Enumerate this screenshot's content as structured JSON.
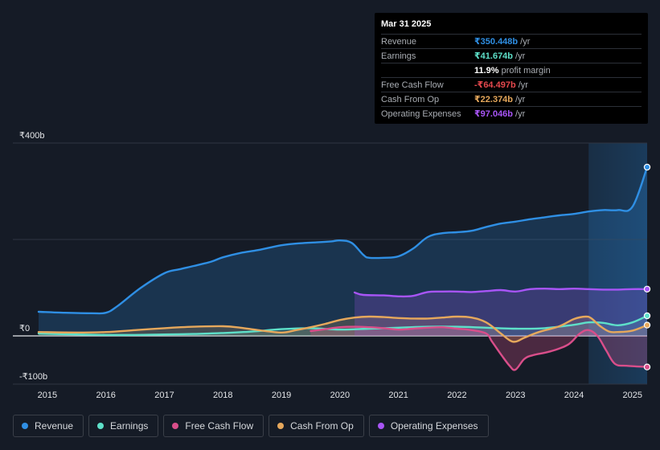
{
  "colors": {
    "revenue": "#2f8fe4",
    "earnings": "#5ee0c9",
    "free_cash_flow": "#d94e8a",
    "cash_from_op": "#e6a85c",
    "operating_expenses": "#a855f7",
    "background": "#151b26"
  },
  "tooltip": {
    "date": "Mar 31 2025",
    "rows": [
      {
        "label": "Revenue",
        "value": "₹350.448b",
        "unit": "/yr",
        "color": "#2f8fe4"
      },
      {
        "label": "Earnings",
        "value": "₹41.674b",
        "unit": "/yr",
        "color": "#5ee0c9"
      },
      {
        "label": "",
        "value": "11.9%",
        "unit": "profit margin",
        "color": "#ffffff"
      },
      {
        "label": "Free Cash Flow",
        "value": "-₹64.497b",
        "unit": "/yr",
        "color": "#e5484d"
      },
      {
        "label": "Cash From Op",
        "value": "₹22.374b",
        "unit": "/yr",
        "color": "#e6a85c"
      },
      {
        "label": "Operating Expenses",
        "value": "₹97.046b",
        "unit": "/yr",
        "color": "#a855f7"
      }
    ]
  },
  "legend": [
    {
      "name": "Revenue",
      "icon": "revenue-dot-icon",
      "color": "#2f8fe4"
    },
    {
      "name": "Earnings",
      "icon": "earnings-dot-icon",
      "color": "#5ee0c9"
    },
    {
      "name": "Free Cash Flow",
      "icon": "free-cash-flow-dot-icon",
      "color": "#d94e8a"
    },
    {
      "name": "Cash From Op",
      "icon": "cash-from-op-dot-icon",
      "color": "#e6a85c"
    },
    {
      "name": "Operating Expenses",
      "icon": "operating-expenses-dot-icon",
      "color": "#a855f7"
    }
  ],
  "chart_data": {
    "type": "area",
    "title": "",
    "xlabel": "",
    "ylabel": "",
    "ylim": [
      -100,
      400
    ],
    "xlim": [
      2014.85,
      2025.25
    ],
    "y_tick_labels": [
      {
        "value": 400,
        "label": "₹400b"
      },
      {
        "value": 0,
        "label": "₹0"
      },
      {
        "value": -100,
        "label": "-₹100b"
      }
    ],
    "x_ticks": [
      2015,
      2016,
      2017,
      2018,
      2019,
      2020,
      2021,
      2022,
      2023,
      2024,
      2025
    ],
    "x_tick_labels": [
      "2015",
      "2016",
      "2017",
      "2018",
      "2019",
      "2020",
      "2021",
      "2022",
      "2023",
      "2024",
      "2025"
    ],
    "grid": true,
    "forecast_shade_start": 2024.25,
    "series": [
      {
        "name": "Revenue",
        "color": "#2f8fe4",
        "x": [
          2014.85,
          2015.3,
          2015.75,
          2016.0,
          2016.2,
          2016.6,
          2017.0,
          2017.25,
          2017.5,
          2017.8,
          2018.0,
          2018.3,
          2018.6,
          2019.0,
          2019.3,
          2019.6,
          2019.85,
          2020.0,
          2020.2,
          2020.4,
          2020.5,
          2020.75,
          2021.0,
          2021.25,
          2021.5,
          2021.75,
          2022.0,
          2022.25,
          2022.5,
          2022.75,
          2023.0,
          2023.25,
          2023.5,
          2023.75,
          2024.0,
          2024.25,
          2024.5,
          2024.75,
          2025.0,
          2025.25
        ],
        "values": [
          50,
          48,
          47,
          48,
          62,
          100,
          130,
          138,
          145,
          154,
          163,
          172,
          178,
          188,
          192,
          194,
          196,
          198,
          193,
          168,
          162,
          162,
          165,
          181,
          205,
          213,
          215,
          218,
          226,
          233,
          237,
          242,
          246,
          250,
          253,
          258,
          261,
          261,
          268,
          350
        ]
      },
      {
        "name": "Earnings",
        "color": "#5ee0c9",
        "x": [
          2014.85,
          2015.5,
          2016.0,
          2016.5,
          2017.0,
          2017.5,
          2018.0,
          2018.5,
          2019.0,
          2019.5,
          2020.0,
          2020.5,
          2021.0,
          2021.5,
          2022.0,
          2022.5,
          2023.0,
          2023.5,
          2024.0,
          2024.25,
          2024.5,
          2024.75,
          2025.0,
          2025.25
        ],
        "values": [
          5,
          3,
          2,
          2,
          3,
          4,
          6,
          9,
          14,
          16,
          13,
          15,
          17,
          19,
          19,
          17,
          15,
          16,
          23,
          28,
          27,
          22,
          28,
          41.674
        ]
      },
      {
        "name": "Free Cash Flow",
        "color": "#d94e8a",
        "x": [
          2019.5,
          2019.75,
          2020.0,
          2020.25,
          2020.5,
          2020.75,
          2021.0,
          2021.25,
          2021.5,
          2021.75,
          2022.0,
          2022.25,
          2022.5,
          2022.6,
          2022.75,
          2022.9,
          2023.0,
          2023.15,
          2023.3,
          2023.6,
          2023.9,
          2024.1,
          2024.25,
          2024.4,
          2024.55,
          2024.7,
          2024.9,
          2025.25
        ],
        "values": [
          10,
          14,
          18,
          19,
          18,
          16,
          13,
          15,
          17,
          18,
          15,
          12,
          5,
          -12,
          -38,
          -62,
          -70,
          -48,
          -40,
          -32,
          -18,
          5,
          12,
          0,
          -30,
          -58,
          -62,
          -64.497
        ]
      },
      {
        "name": "Cash From Op",
        "color": "#e6a85c",
        "x": [
          2014.85,
          2015.5,
          2016.0,
          2016.5,
          2017.0,
          2017.5,
          2018.0,
          2018.3,
          2018.6,
          2019.0,
          2019.25,
          2019.5,
          2019.75,
          2020.0,
          2020.25,
          2020.5,
          2020.75,
          2021.0,
          2021.25,
          2021.5,
          2021.75,
          2022.0,
          2022.25,
          2022.5,
          2022.75,
          2022.9,
          2023.0,
          2023.15,
          2023.4,
          2023.75,
          2024.0,
          2024.2,
          2024.3,
          2024.45,
          2024.6,
          2024.75,
          2025.0,
          2025.25
        ],
        "values": [
          8,
          7,
          8,
          12,
          16,
          19,
          20,
          17,
          12,
          7,
          12,
          18,
          25,
          33,
          38,
          40,
          39,
          37,
          36,
          36,
          38,
          40,
          38,
          28,
          5,
          -9,
          -12,
          -4,
          8,
          20,
          35,
          40,
          36,
          20,
          9,
          8,
          11,
          22.374
        ]
      },
      {
        "name": "Operating Expenses",
        "color": "#a855f7",
        "x": [
          2020.25,
          2020.4,
          2020.75,
          2021.0,
          2021.25,
          2021.5,
          2021.75,
          2022.0,
          2022.25,
          2022.5,
          2022.75,
          2023.0,
          2023.25,
          2023.5,
          2023.75,
          2024.0,
          2024.25,
          2024.5,
          2024.75,
          2025.0,
          2025.25
        ],
        "values": [
          90,
          85,
          84,
          82,
          83,
          91,
          92,
          92,
          91,
          93,
          95,
          92,
          97,
          98,
          97,
          98,
          97,
          96,
          96,
          97,
          97.046
        ]
      }
    ]
  }
}
